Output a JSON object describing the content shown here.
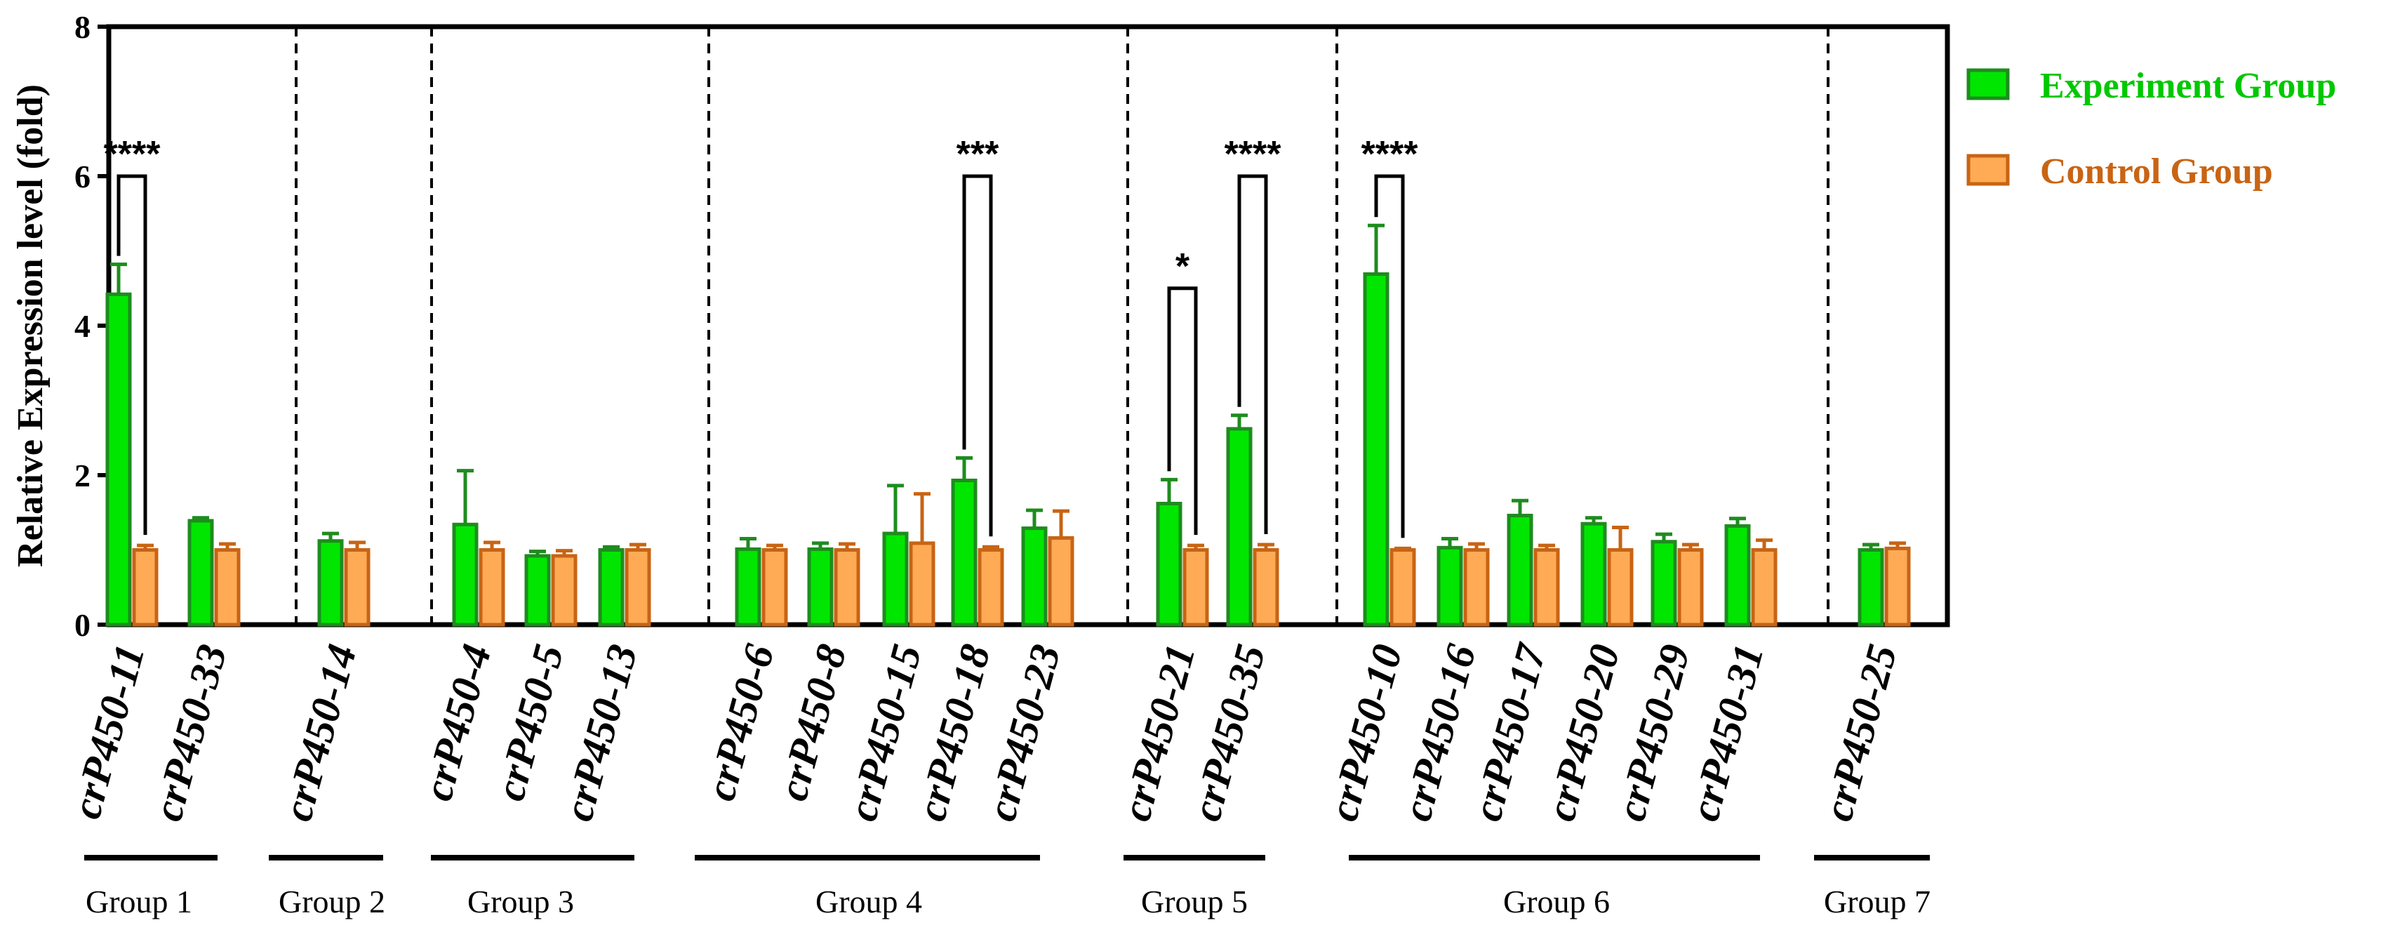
{
  "chart_data": {
    "type": "bar",
    "title": "",
    "xlabel": "",
    "ylabel": "Relative Expression level (fold)",
    "ylim": [
      0,
      8
    ],
    "yticks": [
      "0",
      "2",
      "4",
      "6",
      "8"
    ],
    "grid": false,
    "legend_position": "right",
    "colors": {
      "experiment_fill": "#00e600",
      "experiment_stroke": "#1e8c1e",
      "experiment_text": "#00c800",
      "control_fill": "#ffaa55",
      "control_stroke": "#c86414",
      "control_text": "#c86414"
    },
    "series": [
      {
        "name": "Experiment Group"
      },
      {
        "name": "Control Group"
      }
    ],
    "categories": [
      {
        "name": "crP450-11",
        "group": 1,
        "exp": 4.42,
        "exp_err": 0.4,
        "ctrl": 1.0,
        "ctrl_err": 0.06
      },
      {
        "name": "crP450-33",
        "group": 1,
        "exp": 1.39,
        "exp_err": 0.04,
        "ctrl": 1.0,
        "ctrl_err": 0.08
      },
      {
        "name": "crP450-14",
        "group": 2,
        "exp": 1.12,
        "exp_err": 0.1,
        "ctrl": 1.0,
        "ctrl_err": 0.1
      },
      {
        "name": "crP450-4",
        "group": 3,
        "exp": 1.34,
        "exp_err": 0.72,
        "ctrl": 1.0,
        "ctrl_err": 0.1
      },
      {
        "name": "crP450-5",
        "group": 3,
        "exp": 0.92,
        "exp_err": 0.06,
        "ctrl": 0.92,
        "ctrl_err": 0.07
      },
      {
        "name": "crP450-13",
        "group": 3,
        "exp": 1.0,
        "exp_err": 0.04,
        "ctrl": 1.0,
        "ctrl_err": 0.07
      },
      {
        "name": "crP450-6",
        "group": 4,
        "exp": 1.01,
        "exp_err": 0.14,
        "ctrl": 1.0,
        "ctrl_err": 0.06
      },
      {
        "name": "crP450-8",
        "group": 4,
        "exp": 1.01,
        "exp_err": 0.08,
        "ctrl": 1.0,
        "ctrl_err": 0.08
      },
      {
        "name": "crP450-15",
        "group": 4,
        "exp": 1.22,
        "exp_err": 0.64,
        "ctrl": 1.09,
        "ctrl_err": 0.66
      },
      {
        "name": "crP450-18",
        "group": 4,
        "exp": 1.93,
        "exp_err": 0.3,
        "ctrl": 1.0,
        "ctrl_err": 0.04
      },
      {
        "name": "crP450-23",
        "group": 4,
        "exp": 1.29,
        "exp_err": 0.24,
        "ctrl": 1.16,
        "ctrl_err": 0.36
      },
      {
        "name": "crP450-21",
        "group": 5,
        "exp": 1.62,
        "exp_err": 0.32,
        "ctrl": 1.0,
        "ctrl_err": 0.06
      },
      {
        "name": "crP450-35",
        "group": 5,
        "exp": 2.62,
        "exp_err": 0.18,
        "ctrl": 1.0,
        "ctrl_err": 0.07
      },
      {
        "name": "crP450-10",
        "group": 6,
        "exp": 4.69,
        "exp_err": 0.65,
        "ctrl": 1.0,
        "ctrl_err": 0.02
      },
      {
        "name": "crP450-16",
        "group": 6,
        "exp": 1.03,
        "exp_err": 0.12,
        "ctrl": 1.0,
        "ctrl_err": 0.08
      },
      {
        "name": "crP450-17",
        "group": 6,
        "exp": 1.46,
        "exp_err": 0.2,
        "ctrl": 1.0,
        "ctrl_err": 0.06
      },
      {
        "name": "crP450-20",
        "group": 6,
        "exp": 1.35,
        "exp_err": 0.08,
        "ctrl": 1.0,
        "ctrl_err": 0.3
      },
      {
        "name": "crP450-29",
        "group": 6,
        "exp": 1.11,
        "exp_err": 0.1,
        "ctrl": 1.0,
        "ctrl_err": 0.07
      },
      {
        "name": "crP450-31",
        "group": 6,
        "exp": 1.32,
        "exp_err": 0.1,
        "ctrl": 1.0,
        "ctrl_err": 0.13
      },
      {
        "name": "crP450-25",
        "group": 7,
        "exp": 1.0,
        "exp_err": 0.07,
        "ctrl": 1.02,
        "ctrl_err": 0.07
      }
    ],
    "groups": [
      {
        "id": 1,
        "label": "Group 1"
      },
      {
        "id": 2,
        "label": "Group 2"
      },
      {
        "id": 3,
        "label": "Group 3"
      },
      {
        "id": 4,
        "label": "Group 4"
      },
      {
        "id": 5,
        "label": "Group 5"
      },
      {
        "id": 6,
        "label": "Group 6"
      },
      {
        "id": 7,
        "label": "Group 7"
      }
    ],
    "significance": [
      {
        "category": "crP450-11",
        "label": "****",
        "level": 6.0
      },
      {
        "category": "crP450-18",
        "label": "***",
        "level": 6.0
      },
      {
        "category": "crP450-21",
        "label": "*",
        "level": 4.5
      },
      {
        "category": "crP450-35",
        "label": "****",
        "level": 6.0
      },
      {
        "category": "crP450-10",
        "label": "****",
        "level": 6.0
      }
    ]
  }
}
